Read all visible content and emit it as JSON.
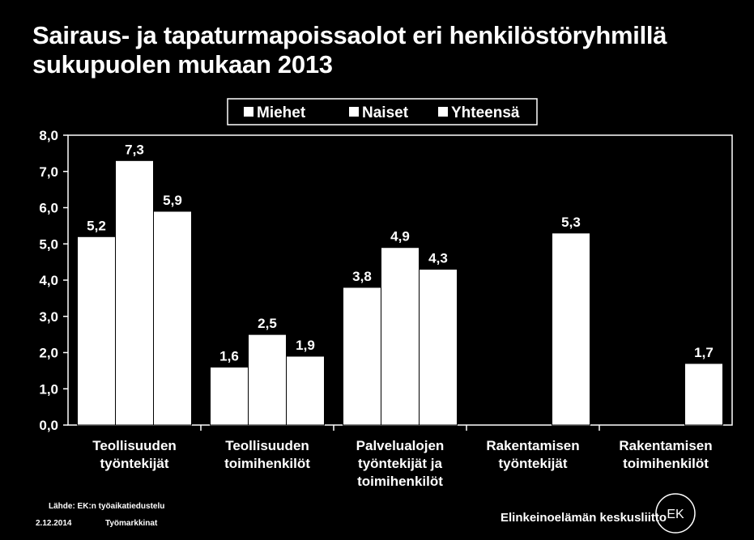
{
  "chart_data": {
    "type": "bar",
    "title": "Sairaus- ja tapaturmapoissaolot eri henkilöstöryhmillä",
    "subtitle": "sukupuolen mukaan 2013",
    "categories": [
      [
        "Teollisuuden",
        "työntekijät"
      ],
      [
        "Teollisuuden",
        "toimihenkilöt"
      ],
      [
        "Palvelualojen",
        "työntekijät ja",
        "toimihenkilöt"
      ],
      [
        "Rakentamisen",
        "työntekijät"
      ],
      [
        "Rakentamisen",
        "toimihenkilöt"
      ]
    ],
    "series": [
      {
        "name": "Miehet",
        "values": [
          5.2,
          1.6,
          3.8,
          null,
          null
        ]
      },
      {
        "name": "Naiset",
        "values": [
          7.3,
          2.5,
          4.9,
          null,
          null
        ]
      },
      {
        "name": "Yhteensä",
        "values": [
          5.9,
          1.9,
          4.3,
          5.3,
          1.7
        ]
      }
    ],
    "value_labels": [
      [
        "5,2",
        "1,6",
        "3,8",
        null,
        null
      ],
      [
        "7,3",
        "2,5",
        "4,9",
        null,
        null
      ],
      [
        "5,9",
        "1,9",
        "4,3",
        "5,3",
        "1,7"
      ]
    ],
    "ylim": [
      0,
      8
    ],
    "yticks": [
      0,
      1,
      2,
      3,
      4,
      5,
      6,
      7,
      8
    ],
    "ytick_labels": [
      "0,0",
      "1,0",
      "2,0",
      "3,0",
      "4,0",
      "5,0",
      "6,0",
      "7,0",
      "8,0"
    ],
    "legend_position": "top",
    "grid": false
  },
  "footer": {
    "source": "Lähde: EK:n työaikatiedustelu",
    "date": "2.12.2014",
    "author": "Työmarkkinat",
    "organization": "Elinkeinoelämän keskusliitto",
    "logo_text": "EK"
  },
  "colors": {
    "background": "#000000",
    "bars": "#ffffff",
    "text": "#ffffff"
  }
}
